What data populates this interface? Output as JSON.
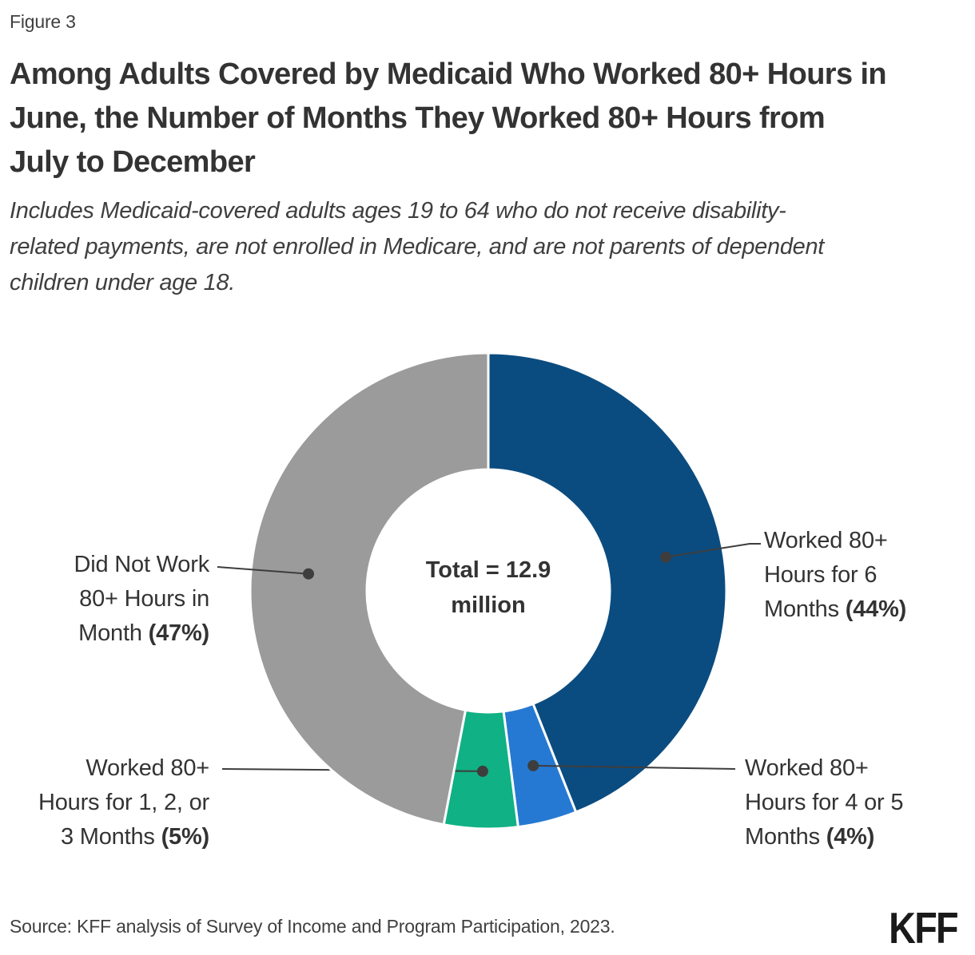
{
  "figure_label": "Figure 3",
  "title_lines": [
    "Among Adults Covered by Medicaid Who Worked 80+ Hours in",
    "June, the Number of Months They Worked 80+ Hours from",
    "July to December"
  ],
  "subtitle_lines": [
    "Includes Medicaid-covered adults ages 19 to 64 who do not receive disability-",
    "related payments, are not enrolled in Medicare, and are not parents of dependent",
    "children under age 18."
  ],
  "center_label": {
    "line1": "Total = 12.9",
    "line2": "million"
  },
  "callouts": {
    "months6": {
      "line1": "Worked 80+",
      "line2": "Hours for 6",
      "line3": "Months ",
      "pct": "(44%)"
    },
    "months45": {
      "line1": "Worked 80+",
      "line2": "Hours for 4 or 5",
      "line3": "Months ",
      "pct": "(4%)"
    },
    "months123": {
      "line1": "Worked 80+",
      "line2": "Hours for 1, 2, or",
      "line3": "3 Months ",
      "pct": "(5%)"
    },
    "didnotwork": {
      "line1": "Did Not Work",
      "line2": "80+ Hours in",
      "line3": "Month ",
      "pct": "(47%)"
    }
  },
  "source": "Source: KFF analysis of Survey of Income and Program Participation, 2023.",
  "logo": "KFF",
  "colors": {
    "dark_blue": "#0B4C80",
    "light_blue": "#2679D2",
    "green": "#10B184",
    "gray": "#9B9B9B",
    "leader_line": "#3d3d3d",
    "text": "#333333"
  },
  "chart_data": {
    "type": "pie",
    "subtype": "donut",
    "title": "Among Adults Covered by Medicaid Who Worked 80+ Hours in June, the Number of Months They Worked 80+ Hours from July to December",
    "center_text": "Total = 12.9 million",
    "total_value_millions": 12.9,
    "start_angle_deg": 0,
    "direction": "clockwise",
    "legend_position": "callout-labels",
    "segments": [
      {
        "name": "Worked 80+ Hours for 6 Months",
        "percent": 44,
        "color": "#0B4C80"
      },
      {
        "name": "Worked 80+ Hours for 4 or 5 Months",
        "percent": 4,
        "color": "#2679D2"
      },
      {
        "name": "Worked 80+ Hours for 1, 2, or 3 Months",
        "percent": 5,
        "color": "#10B184"
      },
      {
        "name": "Did Not Work 80+ Hours in Month",
        "percent": 47,
        "color": "#9B9B9B"
      }
    ]
  }
}
